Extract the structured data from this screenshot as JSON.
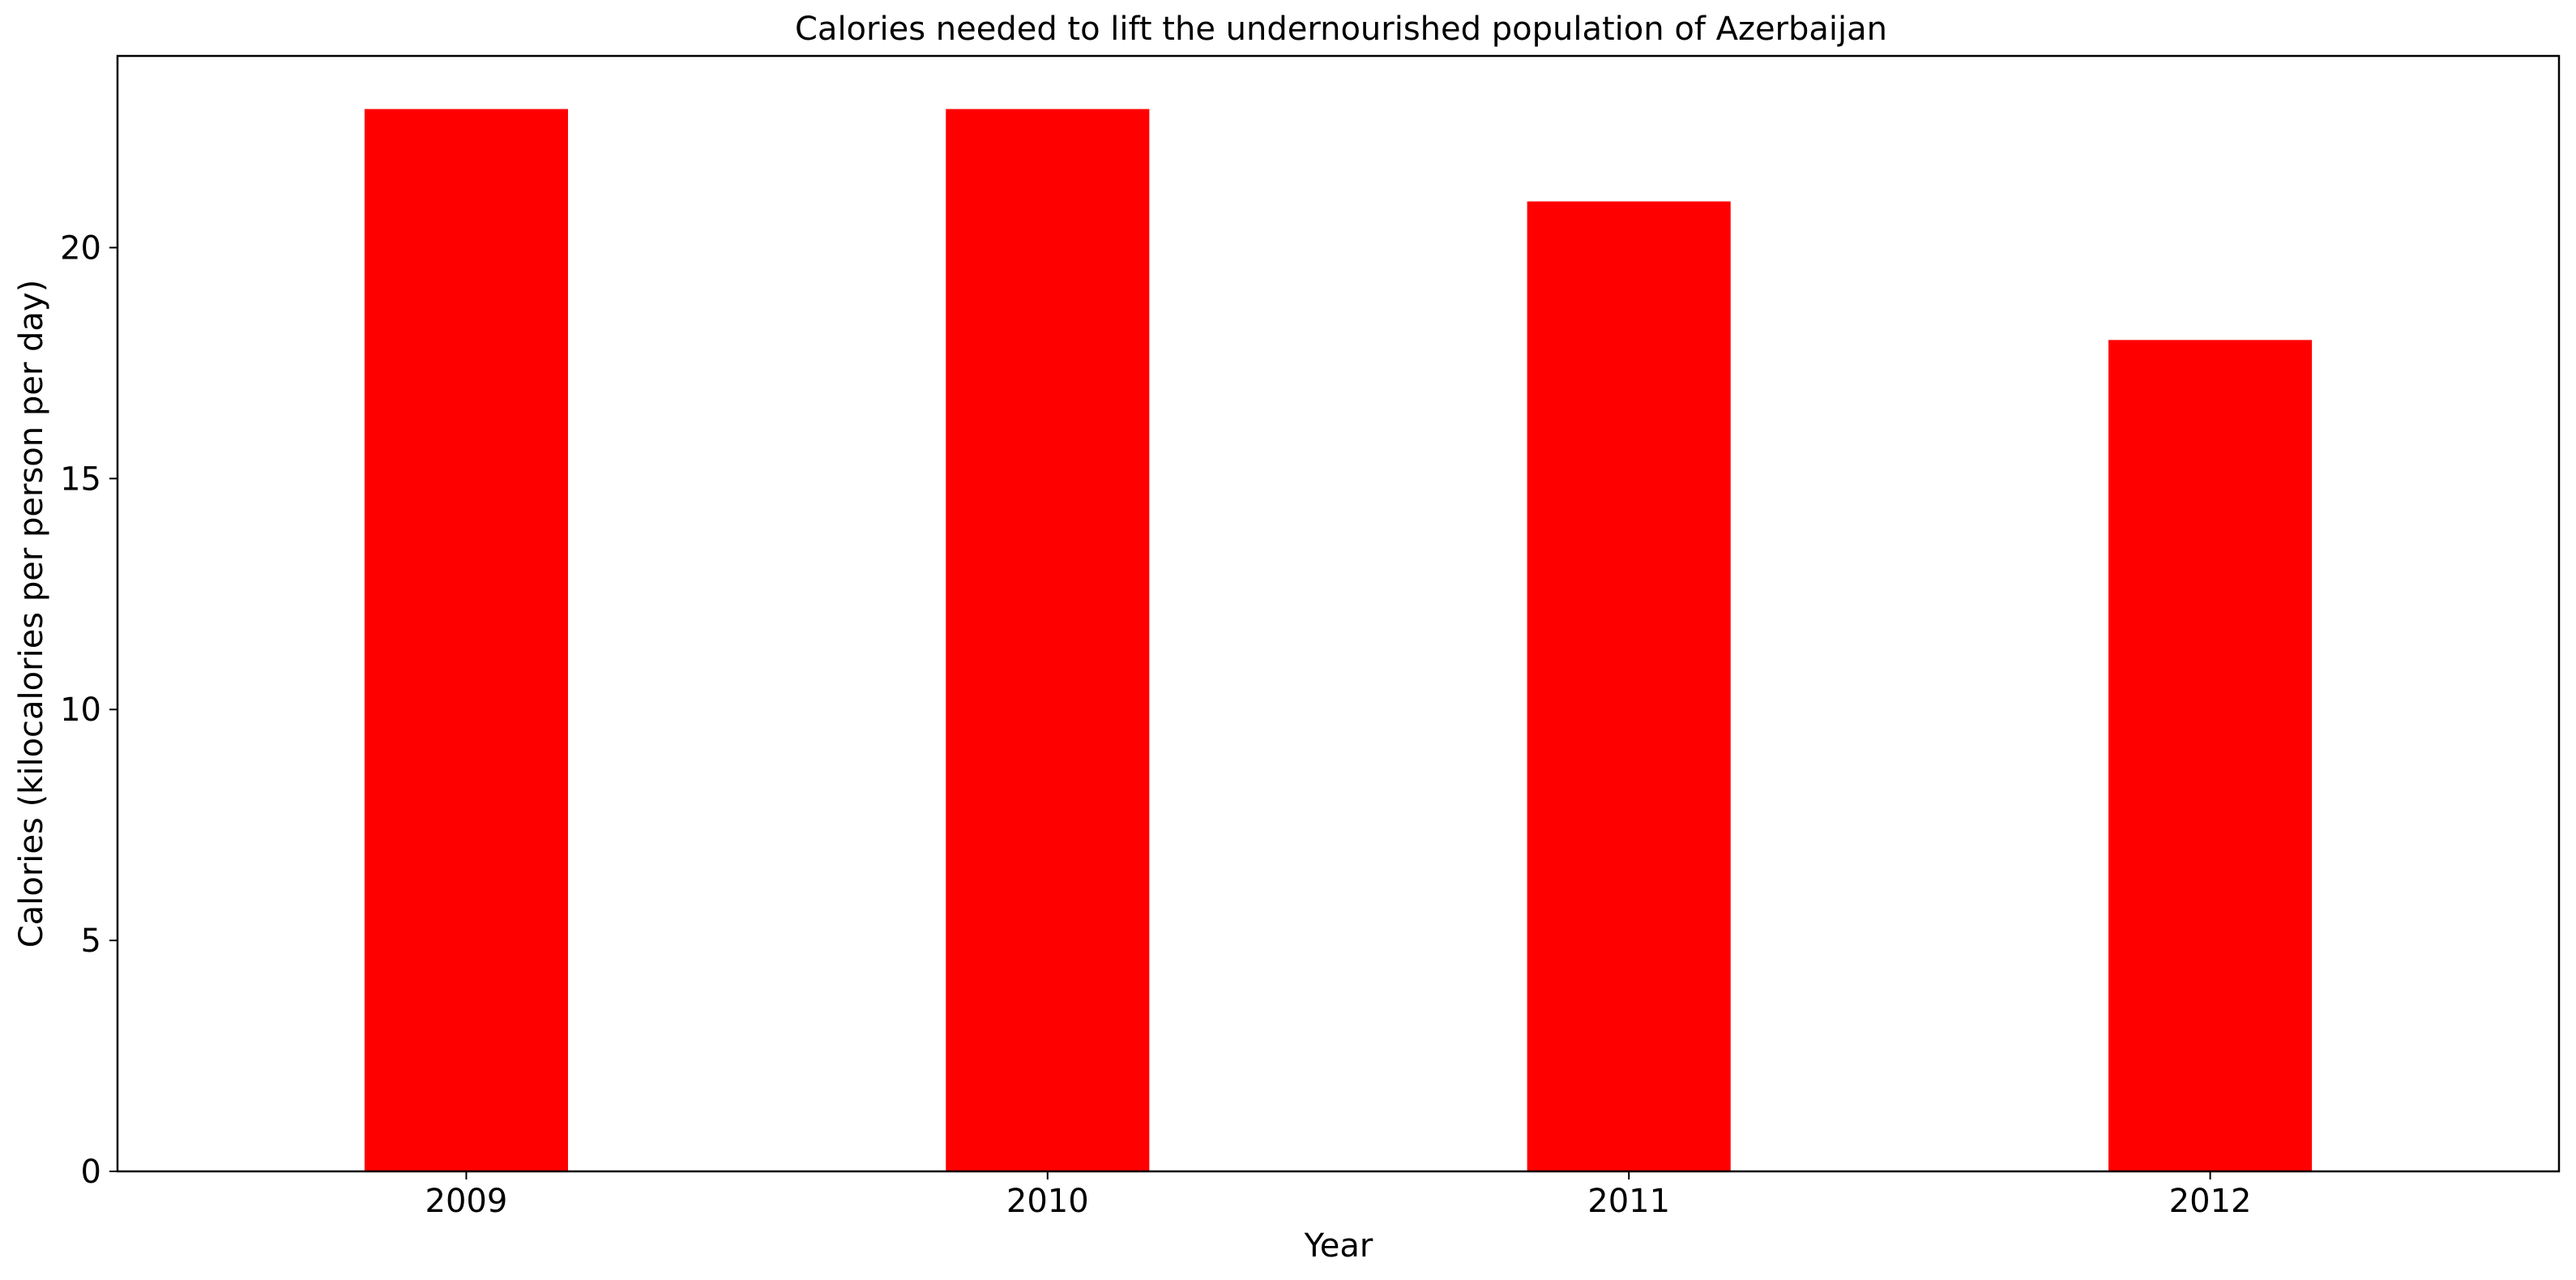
{
  "chart_data": {
    "type": "bar",
    "title": "Calories needed to lift the undernourished population of Azerbaijan",
    "xlabel": "Year",
    "ylabel": "Calories (kilocalories per person per day)",
    "categories": [
      "2009",
      "2010",
      "2011",
      "2012"
    ],
    "values": [
      23,
      23,
      21,
      18
    ],
    "ylim": [
      0,
      24.15
    ],
    "yticks": [
      0,
      5,
      10,
      15,
      20
    ],
    "grid": false,
    "legend": "none",
    "bar_color": "#ff0000"
  }
}
